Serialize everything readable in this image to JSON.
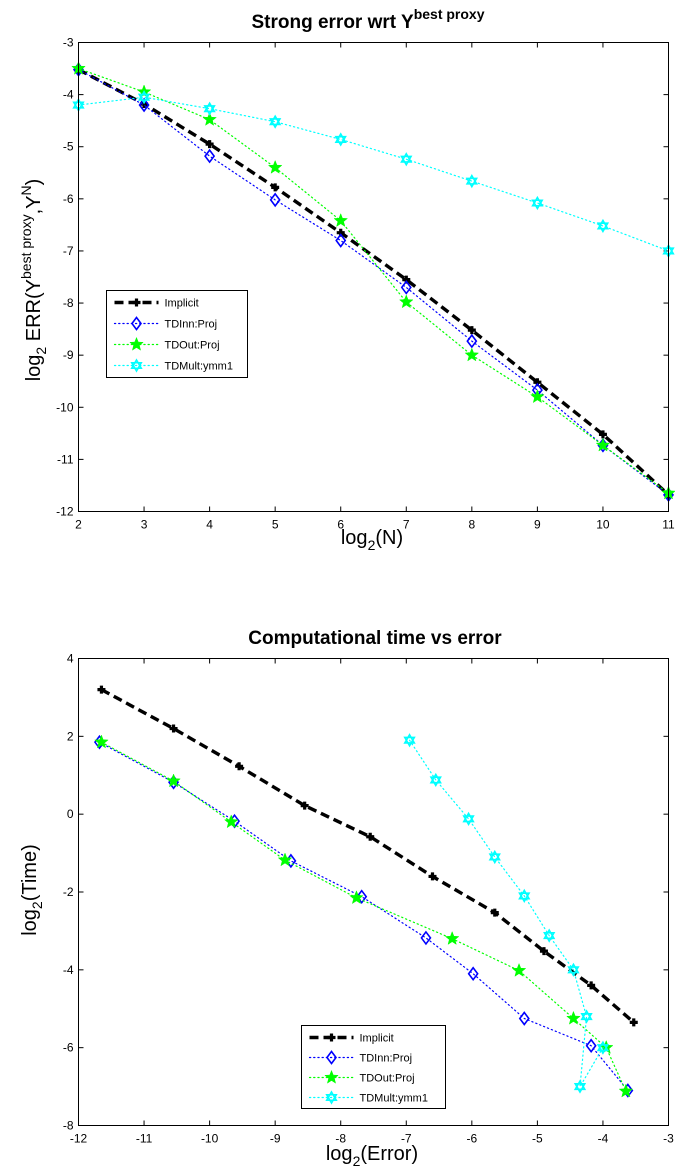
{
  "chart_data": [
    {
      "type": "line",
      "title_main": "Strong error wrt Y",
      "title_sup": "best proxy",
      "xlabel_main": "log",
      "xlabel_sub": "2",
      "xlabel_rest": "(N)",
      "ylabel_parts": {
        "log": "log",
        "sub": "2",
        "err": " ERR(Y",
        "sup1": "best proxy",
        "mid": ",Y",
        "sup2": "N",
        "end": ")"
      },
      "xlim": [
        2,
        11
      ],
      "ylim": [
        -12,
        -3
      ],
      "xticks": [
        "2",
        "3",
        "4",
        "5",
        "6",
        "7",
        "8",
        "9",
        "10",
        "11"
      ],
      "yticks": [
        "-12",
        "-11",
        "-10",
        "-9",
        "-8",
        "-7",
        "-6",
        "-5",
        "-4",
        "-3"
      ],
      "grid": false,
      "legend_position": "middle-left",
      "series": [
        {
          "name": "Implicit",
          "color": "#000000",
          "marker": "plus",
          "style": "dashed",
          "x": [
            2,
            3,
            4,
            5,
            6,
            7,
            8,
            9,
            10,
            11
          ],
          "y": [
            -3.52,
            -4.18,
            -4.95,
            -5.78,
            -6.65,
            -7.55,
            -8.52,
            -9.52,
            -10.52,
            -11.68
          ]
        },
        {
          "name": "TDInn:Proj",
          "color": "#0000ff",
          "marker": "diamond",
          "style": "dotted",
          "x": [
            2,
            3,
            4,
            5,
            6,
            7,
            8,
            9,
            10,
            11
          ],
          "y": [
            -3.52,
            -4.2,
            -5.18,
            -6.02,
            -6.8,
            -7.7,
            -8.73,
            -9.67,
            -10.73,
            -11.68
          ]
        },
        {
          "name": "TDOut:Proj",
          "color": "#00ff00",
          "marker": "star",
          "style": "dotted",
          "x": [
            2,
            3,
            4,
            5,
            6,
            7,
            8,
            9,
            10,
            11
          ],
          "y": [
            -3.5,
            -3.95,
            -4.48,
            -5.4,
            -6.42,
            -7.98,
            -9.0,
            -9.8,
            -10.73,
            -11.65
          ]
        },
        {
          "name": "TDMult:ymm1",
          "color": "#00ffff",
          "marker": "hexagram",
          "style": "dotted",
          "x": [
            2,
            3,
            4,
            5,
            6,
            7,
            8,
            9,
            10,
            11
          ],
          "y": [
            -4.2,
            -4.05,
            -4.27,
            -4.52,
            -4.86,
            -5.24,
            -5.66,
            -6.08,
            -6.52,
            -7.0
          ]
        }
      ]
    },
    {
      "type": "line",
      "title_main": "Computational time vs error",
      "xlabel_main": "log",
      "xlabel_sub": "2",
      "xlabel_rest": "(Error)",
      "ylabel_main": "log",
      "ylabel_sub": "2",
      "ylabel_rest": "(Time)",
      "xlim": [
        -12,
        -3
      ],
      "ylim": [
        -8,
        4
      ],
      "xticks": [
        "-12",
        "-11",
        "-10",
        "-9",
        "-8",
        "-7",
        "-6",
        "-5",
        "-4",
        "-3"
      ],
      "yticks": [
        "-8",
        "-6",
        "-4",
        "-2",
        "0",
        "2",
        "4"
      ],
      "grid": false,
      "legend_position": "bottom-center",
      "series": [
        {
          "name": "Implicit",
          "color": "#000000",
          "marker": "plus",
          "style": "dashed",
          "x": [
            -11.65,
            -10.55,
            -9.55,
            -8.55,
            -7.55,
            -6.6,
            -5.65,
            -4.9,
            -4.18,
            -3.53
          ],
          "y": [
            3.2,
            2.2,
            1.23,
            0.22,
            -0.58,
            -1.6,
            -2.53,
            -3.52,
            -4.4,
            -5.35
          ]
        },
        {
          "name": "TDInn:Proj",
          "color": "#0000ff",
          "marker": "diamond",
          "style": "dotted",
          "x": [
            -11.68,
            -10.55,
            -9.62,
            -8.76,
            -7.68,
            -6.7,
            -5.98,
            -5.2,
            -4.18,
            -3.62
          ],
          "y": [
            1.85,
            0.82,
            -0.18,
            -1.2,
            -2.12,
            -3.18,
            -4.1,
            -5.25,
            -5.95,
            -7.1
          ]
        },
        {
          "name": "TDOut:Proj",
          "color": "#00ff00",
          "marker": "star",
          "style": "dotted",
          "x": [
            -11.65,
            -10.55,
            -9.67,
            -8.85,
            -7.76,
            -6.3,
            -5.28,
            -4.45,
            -3.95,
            -3.65
          ],
          "y": [
            1.85,
            0.85,
            -0.2,
            -1.18,
            -2.15,
            -3.2,
            -4.02,
            -5.25,
            -6.0,
            -7.12
          ]
        },
        {
          "name": "TDMult:ymm1",
          "color": "#00ffff",
          "marker": "hexagram",
          "style": "dotted",
          "x": [
            -6.95,
            -6.55,
            -6.05,
            -5.65,
            -5.2,
            -4.82,
            -4.45,
            -4.25,
            -4.35,
            -4.0
          ],
          "y": [
            1.9,
            0.88,
            -0.12,
            -1.1,
            -2.1,
            -3.12,
            -4.0,
            -5.2,
            -7.0,
            -6.0
          ]
        }
      ]
    }
  ]
}
